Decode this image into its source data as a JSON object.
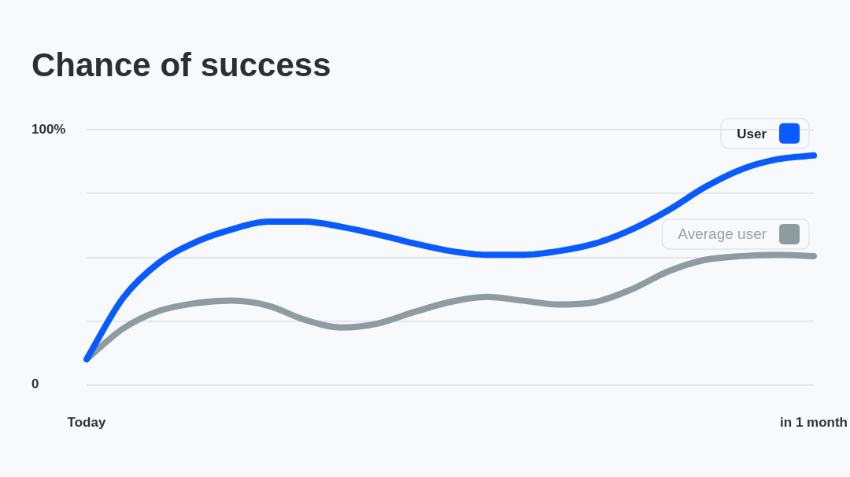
{
  "chart_data": {
    "type": "line",
    "title": "Chance of success",
    "categories": [
      "Today",
      null,
      null,
      null,
      null,
      null,
      null,
      null,
      null,
      null,
      null,
      null,
      null,
      null,
      null,
      null,
      null,
      null,
      null,
      null,
      "in 1 month"
    ],
    "series": [
      {
        "name": "User",
        "color": "#0a5bff",
        "values": [
          10,
          34,
          48,
          56,
          61,
          64,
          64,
          62,
          59,
          55.5,
          52.5,
          51,
          51,
          52.5,
          55.5,
          61,
          68.5,
          77.5,
          84.5,
          88.5,
          90
        ]
      },
      {
        "name": "Average user",
        "color": "#8e9ca1",
        "values": [
          10,
          22,
          29,
          32,
          33,
          31,
          25.5,
          22.5,
          24,
          28.5,
          32.5,
          34.5,
          33,
          31.5,
          32.5,
          37.5,
          44.5,
          49,
          50.5,
          51,
          50.5
        ]
      }
    ],
    "ylim": [
      0,
      100
    ],
    "yticks": [
      0,
      {
        "value": 25,
        "label": null
      },
      {
        "value": 50,
        "label": null
      },
      {
        "value": 75,
        "label": null
      },
      {
        "value": 100,
        "label": "100%"
      }
    ],
    "grid": "y",
    "legend": "top right"
  }
}
